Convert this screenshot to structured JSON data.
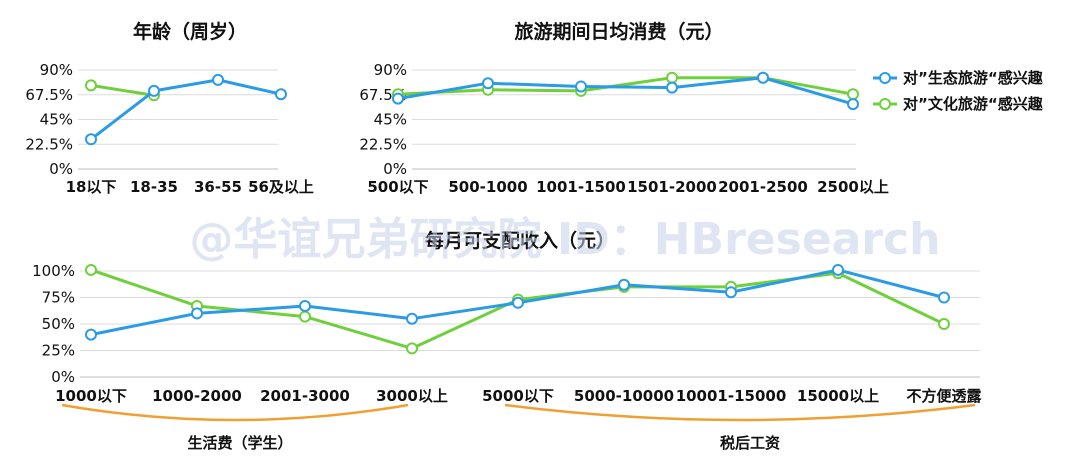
{
  "watermark": "@华谊兄弟研究院 ID：HBresearch",
  "colors": {
    "blue": "#2b9be8",
    "green": "#6fd03b",
    "orange": "#f0a030"
  },
  "legend": [
    {
      "label": "对”生态旅游“感兴趣",
      "color": "#2b9be8"
    },
    {
      "label": "对”文化旅游“感兴趣",
      "color": "#6fd03b"
    }
  ],
  "braces": [
    {
      "label": "生活费（学生）"
    },
    {
      "label": "税后工资"
    }
  ],
  "chart_data": [
    {
      "type": "line",
      "title": "年龄（周岁）",
      "categories": [
        "18以下",
        "18-35",
        "36-55",
        "56及以上"
      ],
      "yticks": [
        "0%",
        "22.5%",
        "45%",
        "67.5%",
        "90%"
      ],
      "ylim": [
        0,
        100
      ],
      "series": [
        {
          "name": "对”生态旅游“感兴趣",
          "values": [
            27,
            71,
            81,
            68
          ]
        },
        {
          "name": "对”文化旅游“感兴趣",
          "values": [
            76,
            67,
            null,
            null
          ]
        }
      ]
    },
    {
      "type": "line",
      "title": "旅游期间日均消费（元）",
      "categories": [
        "500以下",
        "500-1000",
        "1001-1500",
        "1501-2000",
        "2001-2500",
        "2500以上"
      ],
      "yticks": [
        "0%",
        "22.5%",
        "45%",
        "67.5%",
        "90%"
      ],
      "ylim": [
        0,
        100
      ],
      "series": [
        {
          "name": "对”生态旅游“感兴趣",
          "values": [
            64,
            78,
            75,
            74,
            83,
            59
          ]
        },
        {
          "name": "对”文化旅游“感兴趣",
          "values": [
            68,
            72,
            71,
            83,
            83,
            68
          ]
        }
      ]
    },
    {
      "type": "line",
      "title": "每月可支配收入（元）",
      "categories": [
        "1000以下",
        "1000-2000",
        "2001-3000",
        "3000以上",
        "5000以下",
        "5000-10000",
        "10001-15000",
        "15000以上",
        "不方便透露"
      ],
      "yticks": [
        "0%",
        "25%",
        "50%",
        "75%",
        "100%"
      ],
      "ylim": [
        0,
        120
      ],
      "series": [
        {
          "name": "对”生态旅游“感兴趣",
          "values": [
            40,
            60,
            67,
            55,
            70,
            87,
            80,
            101,
            75
          ]
        },
        {
          "name": "对”文化旅游“感兴趣",
          "values": [
            101,
            67,
            57,
            27,
            73,
            85,
            85,
            98,
            50
          ]
        }
      ]
    }
  ]
}
